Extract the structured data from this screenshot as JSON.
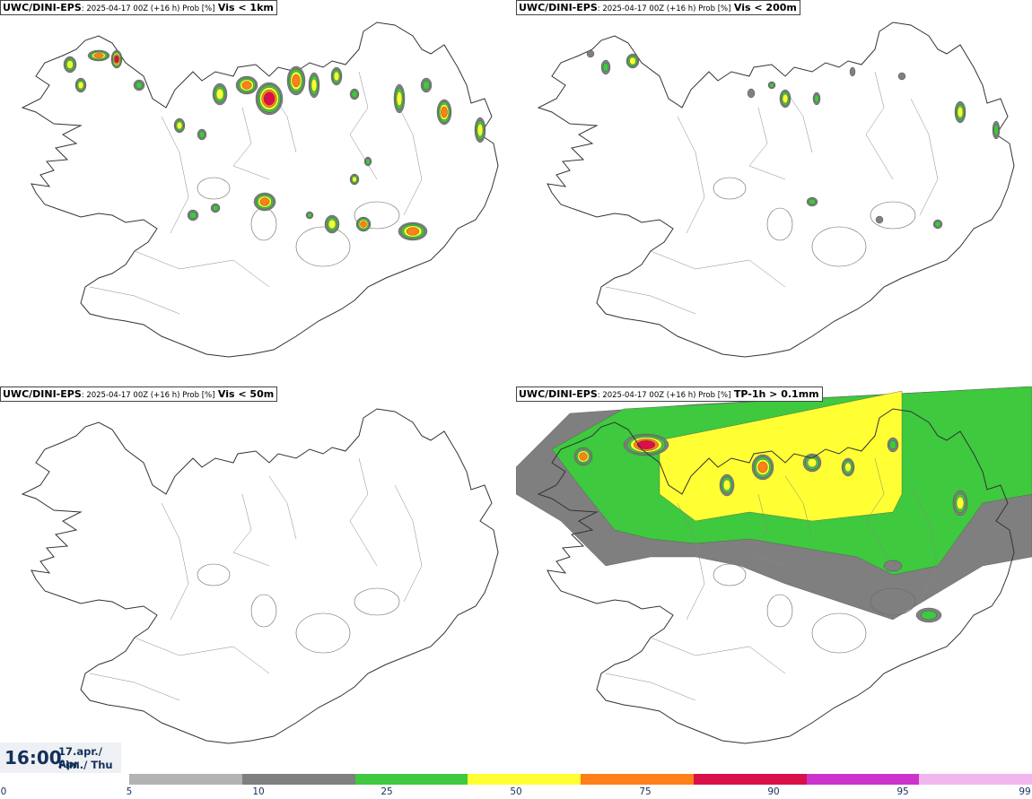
{
  "panels": [
    {
      "model": "UWC/DINI-EPS",
      "meta": ": 2025-04-17 00Z (+16 h) Prob [%]",
      "var": "Vis < 1km"
    },
    {
      "model": "UWC/DINI-EPS",
      "meta": ": 2025-04-17 00Z (+16 h) Prob [%]",
      "var": "Vis < 200m"
    },
    {
      "model": "UWC/DINI-EPS",
      "meta": ": 2025-04-17 00Z (+16 h) Prob [%]",
      "var": "Vis < 50m"
    },
    {
      "model": "UWC/DINI-EPS",
      "meta": ": 2025-04-17 00Z (+16 h) Prob [%]",
      "var": "TP-1h > 0.1mm"
    }
  ],
  "timestamp": {
    "time": "16:00",
    "date_line1": "17.apr./ Apr",
    "date_line2": "Fim./ Thu"
  },
  "colorbar": {
    "ticks": [
      "0",
      "5",
      "10",
      "25",
      "50",
      "75",
      "90",
      "95",
      "99"
    ],
    "colors": [
      "#ffffff",
      "#b3b3b3",
      "#7f7f7f",
      "#3ec93e",
      "#ffff33",
      "#ff7f1a",
      "#d9104a",
      "#cc33cc",
      "#f2b6ee"
    ]
  }
}
